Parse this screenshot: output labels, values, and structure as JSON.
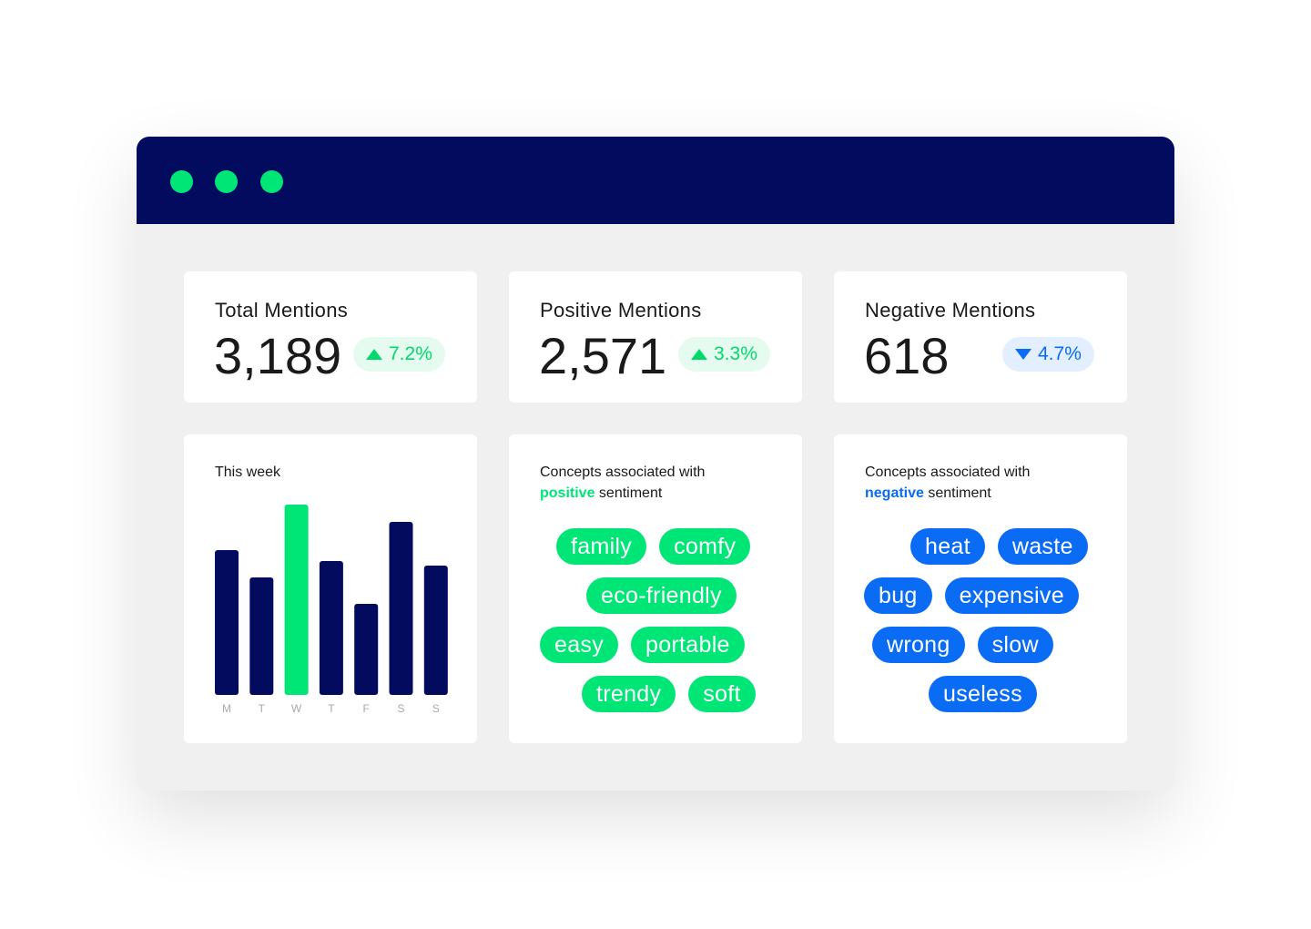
{
  "window": {
    "dots": [
      "#00e676",
      "#00e676",
      "#00e676"
    ]
  },
  "stats": [
    {
      "label": "Total Mentions",
      "value": "3,189",
      "change": "7.2%",
      "direction": "up"
    },
    {
      "label": "Positive Mentions",
      "value": "2,571",
      "change": "3.3%",
      "direction": "up"
    },
    {
      "label": "Negative Mentions",
      "value": "618",
      "change": "4.7%",
      "direction": "down"
    }
  ],
  "chart_data": {
    "type": "bar",
    "title": "This week",
    "categories": [
      "M",
      "T",
      "W",
      "T",
      "F",
      "S",
      "S"
    ],
    "values": [
      159,
      129,
      209,
      147,
      100,
      190,
      142
    ],
    "highlight_index": 2,
    "colors": {
      "default": "#020b5e",
      "highlight": "#00e676"
    },
    "xlabel": "",
    "ylabel": "",
    "ylim": [
      0,
      209
    ]
  },
  "positive": {
    "title_prefix": "Concepts associated with",
    "keyword": "positive",
    "suffix": "sentiment",
    "rows": [
      [
        "family",
        "comfy"
      ],
      [
        "eco-friendly"
      ],
      [
        "easy",
        "portable"
      ],
      [
        "trendy",
        "soft"
      ]
    ]
  },
  "negative": {
    "title_prefix": "Concepts associated with",
    "keyword": "negative",
    "suffix": "sentiment",
    "rows": [
      [
        "heat",
        "waste"
      ],
      [
        "bug",
        "expensive"
      ],
      [
        "wrong",
        "slow"
      ],
      [
        "useless"
      ]
    ]
  }
}
